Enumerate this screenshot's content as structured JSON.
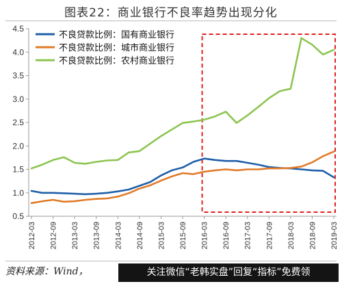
{
  "title": "图表22：商业银行不良率趋势出现分化",
  "source": "资料来源：Wind，",
  "banner": "关注微信“老韩实盘”回复“指标”免费领",
  "colors": {
    "series": [
      "#1f5fa8",
      "#e07b28",
      "#8cc550"
    ],
    "highlight": "#e02020",
    "axis": "#999999",
    "text": "#333333"
  },
  "chart_data": {
    "type": "line",
    "title": "图表22：商业银行不良率趋势出现分化",
    "xlabel": "",
    "ylabel": "",
    "ylim": [
      0.5,
      4.5
    ],
    "yticks": [
      "0.5",
      "1.0",
      "1.5",
      "2.0",
      "2.5",
      "3.0",
      "3.5",
      "4.0",
      "4.5"
    ],
    "x_tick_labels": [
      "2012-03",
      "2012-09",
      "2013-03",
      "2013-09",
      "2014-03",
      "2014-09",
      "2015-03",
      "2015-09",
      "2016-03",
      "2016-09",
      "2017-03",
      "2017-09",
      "2018-03",
      "2018-09",
      "2019-03"
    ],
    "x": [
      "2012-03",
      "2012-06",
      "2012-09",
      "2012-12",
      "2013-03",
      "2013-06",
      "2013-09",
      "2013-12",
      "2014-03",
      "2014-06",
      "2014-09",
      "2014-12",
      "2015-03",
      "2015-06",
      "2015-09",
      "2015-12",
      "2016-03",
      "2016-06",
      "2016-09",
      "2016-12",
      "2017-03",
      "2017-06",
      "2017-09",
      "2017-12",
      "2018-03",
      "2018-06",
      "2018-09",
      "2018-12",
      "2019-03"
    ],
    "legend_position": "top-left",
    "grid": false,
    "series": [
      {
        "name": "不良贷款比例：国有商业银行",
        "values": [
          1.04,
          1.0,
          1.0,
          0.99,
          0.98,
          0.97,
          0.98,
          1.0,
          1.03,
          1.07,
          1.15,
          1.23,
          1.37,
          1.48,
          1.54,
          1.66,
          1.73,
          1.7,
          1.68,
          1.68,
          1.64,
          1.6,
          1.55,
          1.53,
          1.52,
          1.5,
          1.48,
          1.47,
          1.33
        ]
      },
      {
        "name": "不良贷款比例：城市商业银行",
        "values": [
          0.78,
          0.82,
          0.85,
          0.81,
          0.82,
          0.85,
          0.87,
          0.88,
          0.92,
          0.99,
          1.09,
          1.16,
          1.26,
          1.35,
          1.42,
          1.4,
          1.45,
          1.48,
          1.5,
          1.48,
          1.5,
          1.5,
          1.52,
          1.52,
          1.53,
          1.56,
          1.65,
          1.78,
          1.88
        ]
      },
      {
        "name": "不良贷款比例：农村商业银行",
        "values": [
          1.52,
          1.6,
          1.7,
          1.76,
          1.64,
          1.62,
          1.66,
          1.69,
          1.7,
          1.86,
          1.89,
          2.05,
          2.21,
          2.35,
          2.49,
          2.52,
          2.56,
          2.63,
          2.73,
          2.49,
          2.65,
          2.83,
          3.02,
          3.17,
          3.22,
          4.3,
          4.16,
          3.95,
          4.05
        ]
      }
    ],
    "highlight_range": [
      "2016-03",
      "2019-03"
    ]
  }
}
